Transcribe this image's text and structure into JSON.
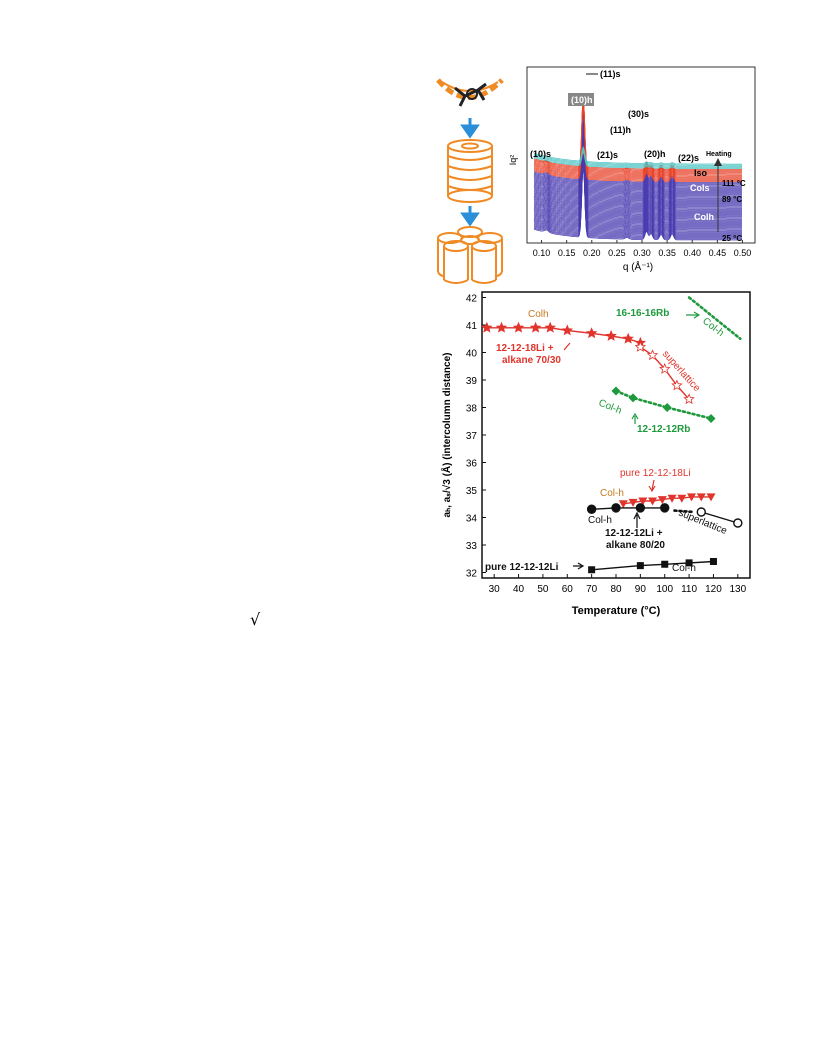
{
  "figure": {
    "saxs_panel": {
      "xlabel": "q (Å⁻¹)",
      "ylabel": "Iq²",
      "x_ticks": [
        "0.10",
        "0.15",
        "0.20",
        "0.25",
        "0.30",
        "0.35",
        "0.40",
        "0.45",
        "0.50"
      ],
      "peak_labels": {
        "s11": "(11)s",
        "h10": "(10)h",
        "s10": "(10)s",
        "s30": "(30)s",
        "h11": "(11)h",
        "s21": "(21)s",
        "h20": "(20)h",
        "s22": "(22)s"
      },
      "heating_label": "Heating",
      "phase_labels": {
        "iso": "Iso",
        "col_s": "Cols",
        "col_h": "Colh"
      },
      "temperature_labels": [
        "111 °C",
        "89 °C",
        "25 °C"
      ],
      "colors": {
        "iso": "#4fc4c4",
        "col_s": "#e8442c",
        "col_h": "#4a3cb0"
      }
    },
    "chart_data": {
      "type": "line",
      "xlabel": "Temperature (°C)",
      "ylabel": "aₕ, aₛ/√3 (Å) (intercolumn distance)",
      "xlim": [
        25,
        135
      ],
      "ylim": [
        31.8,
        42.2
      ],
      "x_ticks": [
        30,
        40,
        50,
        60,
        70,
        80,
        90,
        100,
        110,
        120,
        130
      ],
      "y_ticks": [
        32,
        33,
        34,
        35,
        36,
        37,
        38,
        39,
        40,
        41,
        42
      ],
      "series": [
        {
          "name": "12-12-18Li + alkane 70/30",
          "color": "#e0342c",
          "marker": "star",
          "filled": true,
          "line": "solid",
          "x": [
            27,
            33,
            40,
            47,
            53,
            60,
            70,
            78,
            85,
            90
          ],
          "y": [
            40.9,
            40.9,
            40.9,
            40.9,
            40.9,
            40.8,
            40.7,
            40.6,
            40.5,
            40.35
          ]
        },
        {
          "name": "12-12-18Li + alkane 70/30 superlattice",
          "color": "#e0342c",
          "marker": "star",
          "filled": false,
          "line": "solid",
          "x": [
            90,
            95,
            100,
            105,
            110
          ],
          "y": [
            40.2,
            39.9,
            39.4,
            38.8,
            38.3
          ]
        },
        {
          "name": "16-16-16Rb",
          "color": "#1e9a3c",
          "marker": "none",
          "line": "dotted",
          "x": [
            110,
            131
          ],
          "y": [
            42.0,
            40.5
          ]
        },
        {
          "name": "12-12-12Rb",
          "color": "#1e9a3c",
          "marker": "diamond",
          "filled": true,
          "line": "dotted",
          "x": [
            80,
            87,
            101,
            119
          ],
          "y": [
            38.6,
            38.35,
            38.0,
            37.6
          ]
        },
        {
          "name": "pure 12-12-18Li",
          "color": "#e0342c",
          "marker": "triangle-down",
          "filled": true,
          "line": "solid",
          "x": [
            83,
            87,
            91,
            95,
            99,
            103,
            107,
            111,
            115,
            119
          ],
          "y": [
            34.5,
            34.55,
            34.6,
            34.6,
            34.65,
            34.7,
            34.7,
            34.75,
            34.75,
            34.75
          ]
        },
        {
          "name": "12-12-12Li + alkane 80/20",
          "color": "#111111",
          "marker": "circle",
          "filled": true,
          "line": "solid",
          "x": [
            70,
            80,
            90,
            100
          ],
          "y": [
            34.3,
            34.35,
            34.35,
            34.35
          ]
        },
        {
          "name": "12-12-12Li + alkane 80/20 dotted",
          "color": "#111111",
          "marker": "none",
          "line": "dotted",
          "x": [
            104,
            112
          ],
          "y": [
            34.25,
            34.2
          ]
        },
        {
          "name": "12-12-12Li + alkane 80/20 superlattice",
          "color": "#111111",
          "marker": "circle",
          "filled": false,
          "line": "solid",
          "x": [
            115,
            130
          ],
          "y": [
            34.2,
            33.8
          ]
        },
        {
          "name": "pure 12-12-12Li",
          "color": "#111111",
          "marker": "square",
          "filled": true,
          "line": "solid",
          "x": [
            70,
            90,
            100,
            110,
            120
          ],
          "y": [
            32.1,
            32.25,
            32.3,
            32.35,
            32.4
          ]
        }
      ],
      "annotations": {
        "colh_top": "Colh",
        "li18_alkane_1": "12-12-18Li +",
        "li18_alkane_2": "alkane 70/30",
        "superlattice_red": "superlattice",
        "rb16": "16-16-16Rb",
        "colh_rb16": "Col-h",
        "colh_rb12": "Col-h",
        "rb12": "12-12-12Rb",
        "pure_li18": "pure 12-12-18Li",
        "colh_li18": "Col-h",
        "colh_li12alk": "Col-h",
        "li12_alkane_1": "12-12-12Li +",
        "li12_alkane_2": "alkane 80/20",
        "superlattice_black": "superlattice",
        "pure_li12": "pure 12-12-12Li",
        "colh_li12": "Col-h"
      }
    }
  },
  "fragment": {
    "sqrt": "√"
  }
}
